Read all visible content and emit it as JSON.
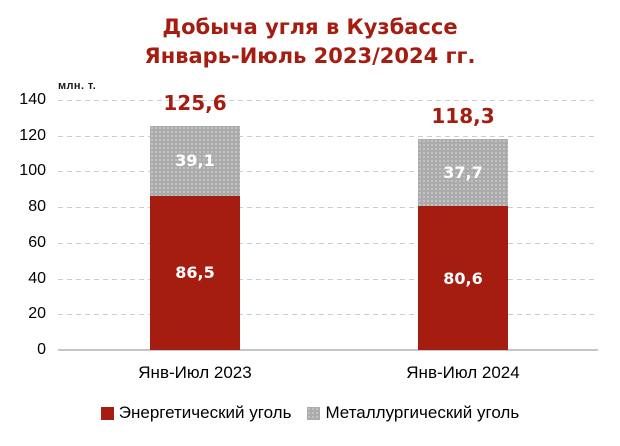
{
  "title": {
    "line1": "Добыча угля в Кузбассе",
    "line2": "Январь-Июль 2023/2024 гг."
  },
  "chart_data": {
    "type": "bar",
    "stacked": true,
    "title": "Добыча угля в Кузбассе Январь-Июль 2023/2024 гг.",
    "unit_label": "млн. т.",
    "categories": [
      "Янв-Июл 2023",
      "Янв-Июл 2024"
    ],
    "series": [
      {
        "name": "Энергетический уголь",
        "color": "#A41D10",
        "values": [
          86.5,
          80.6
        ],
        "labels": [
          "86,5",
          "80,6"
        ]
      },
      {
        "name": "Металлургический уголь",
        "color": "#ABABAB",
        "values": [
          39.1,
          37.7
        ],
        "labels": [
          "39,1",
          "37,7"
        ]
      }
    ],
    "totals": {
      "values": [
        125.6,
        118.3
      ],
      "labels": [
        "125,6",
        "118,3"
      ]
    },
    "ylim": [
      0,
      140
    ],
    "ytick_values": [
      0,
      20,
      40,
      60,
      80,
      100,
      120,
      140
    ],
    "grid": "horizontal-dashed",
    "legend_position": "bottom"
  },
  "colors": {
    "accent_red": "#A41D10",
    "series_gray": "#ABABAB",
    "gray_speckle": "#C9C9C9",
    "gridline": "#CDCDCD",
    "axis_line": "#C6C6C6",
    "text": "#000000",
    "value_label_white": "#FFFFFF",
    "background": "#FFFFFF"
  }
}
